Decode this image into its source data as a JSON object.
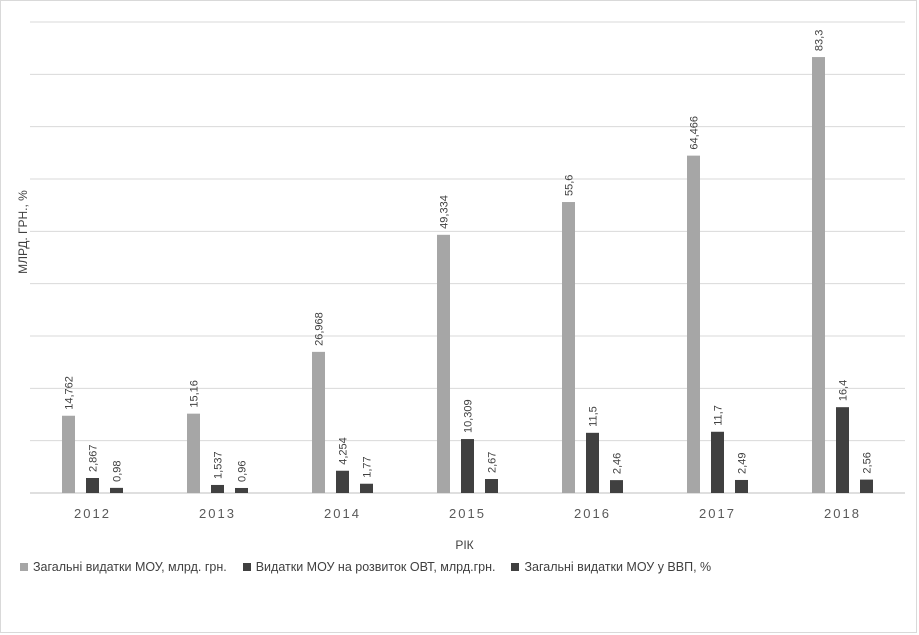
{
  "chart_data": {
    "type": "bar",
    "title": "",
    "xlabel": "РІК",
    "ylabel": "МЛРД. ГРН., %",
    "categories": [
      "2012",
      "2013",
      "2014",
      "2015",
      "2016",
      "2017",
      "2018"
    ],
    "ylim": [
      0,
      90
    ],
    "grid": true,
    "legend_position": "bottom",
    "series": [
      {
        "name": "Загальні видатки МОУ, млрд. грн.",
        "color": "#a6a6a6",
        "values": [
          14.762,
          15.16,
          26.968,
          49.334,
          55.6,
          64.466,
          83.3
        ],
        "labels": [
          "14,762",
          "15,16",
          "26,968",
          "49,334",
          "55,6",
          "64,466",
          "83,3"
        ]
      },
      {
        "name": "Видатки МОУ на розвиток ОВТ, млрд.грн.",
        "color": "#404040",
        "values": [
          2.867,
          1.537,
          4.254,
          10.309,
          11.5,
          11.7,
          16.4
        ],
        "labels": [
          "2,867",
          "1,537",
          "4,254",
          "10,309",
          "11,5",
          "11,7",
          "16,4"
        ]
      },
      {
        "name": "Загальні видатки МОУ у ВВП, %",
        "color": "#404040",
        "values": [
          0.98,
          0.96,
          1.77,
          2.67,
          2.46,
          2.49,
          2.56
        ],
        "labels": [
          "0,98",
          "0,96",
          "1,77",
          "2,67",
          "2,46",
          "2,49",
          "2,56"
        ]
      }
    ]
  }
}
